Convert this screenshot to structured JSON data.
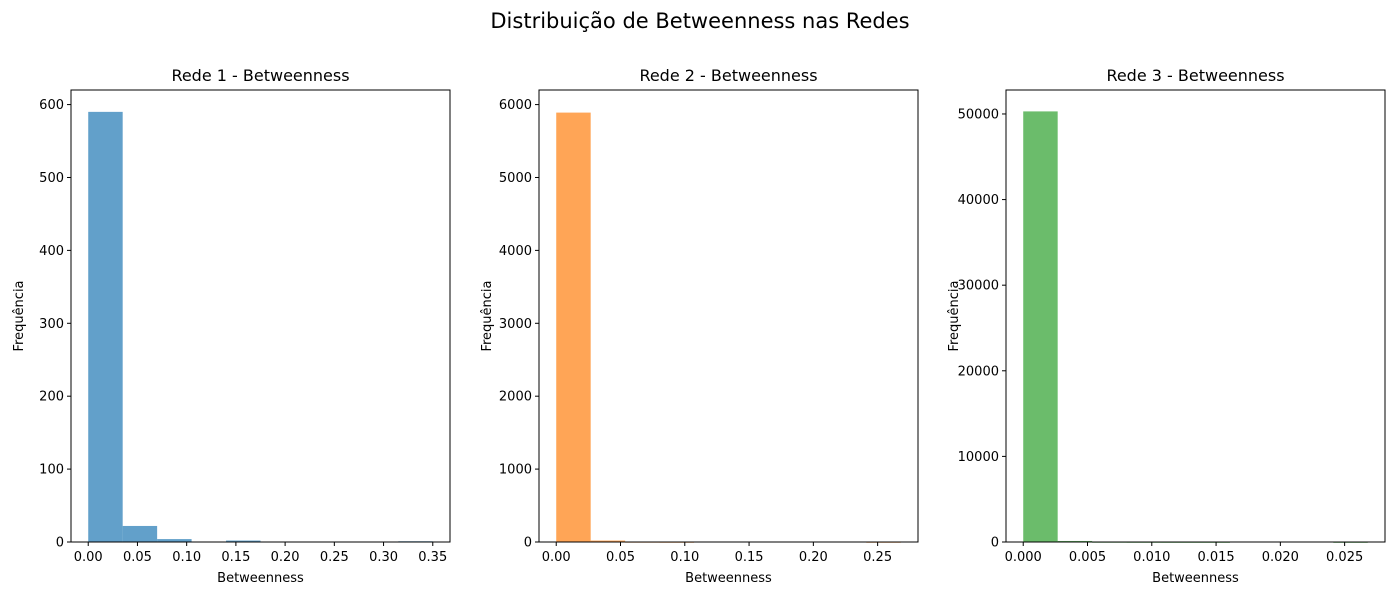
{
  "figure": {
    "title": "Distribuição de Betweenness nas Redes"
  },
  "chart_data": [
    {
      "type": "bar",
      "subtype": "histogram",
      "title": "Rede 1 - Betweenness",
      "xlabel": "Betweenness",
      "ylabel": "Frequência",
      "color": "#1f77b4",
      "opacity": 0.7,
      "bin_edges": [
        0.0,
        0.035,
        0.07,
        0.105,
        0.14,
        0.175,
        0.21,
        0.245,
        0.28,
        0.315,
        0.35
      ],
      "values": [
        590,
        22,
        4,
        0,
        2,
        0,
        0,
        0,
        0,
        1
      ],
      "xlim": [
        -0.0175,
        0.3675
      ],
      "ylim": [
        0,
        620
      ],
      "xticks": [
        0.0,
        0.05,
        0.1,
        0.15,
        0.2,
        0.25,
        0.3,
        0.35
      ],
      "xtick_labels": [
        "0.00",
        "0.05",
        "0.10",
        "0.15",
        "0.20",
        "0.25",
        "0.30",
        "0.35"
      ],
      "yticks": [
        0,
        100,
        200,
        300,
        400,
        500,
        600
      ],
      "ytick_labels": [
        "0",
        "100",
        "200",
        "300",
        "400",
        "500",
        "600"
      ],
      "grid": false,
      "legend": "none"
    },
    {
      "type": "bar",
      "subtype": "histogram",
      "title": "Rede 2 - Betweenness",
      "xlabel": "Betweenness",
      "ylabel": "Frequência",
      "color": "#ff7f0e",
      "opacity": 0.7,
      "bin_edges": [
        0.0,
        0.0268,
        0.0536,
        0.0804,
        0.1072,
        0.134,
        0.1608,
        0.1876,
        0.2144,
        0.2412,
        0.268
      ],
      "values": [
        5890,
        20,
        2,
        1,
        0,
        0,
        0,
        0,
        0,
        1
      ],
      "xlim": [
        -0.0134,
        0.2814
      ],
      "ylim": [
        0,
        6200
      ],
      "xticks": [
        0.0,
        0.05,
        0.1,
        0.15,
        0.2,
        0.25
      ],
      "xtick_labels": [
        "0.00",
        "0.05",
        "0.10",
        "0.15",
        "0.20",
        "0.25"
      ],
      "yticks": [
        0,
        1000,
        2000,
        3000,
        4000,
        5000,
        6000
      ],
      "ytick_labels": [
        "0",
        "1000",
        "2000",
        "3000",
        "4000",
        "5000",
        "6000"
      ],
      "grid": false,
      "legend": "none"
    },
    {
      "type": "bar",
      "subtype": "histogram",
      "title": "Rede 3 - Betweenness",
      "xlabel": "Betweenness",
      "ylabel": "Frequência",
      "color": "#2ca02c",
      "opacity": 0.7,
      "bin_edges": [
        0.0,
        0.00268,
        0.00536,
        0.00804,
        0.01072,
        0.0134,
        0.01608,
        0.01876,
        0.02144,
        0.02412,
        0.0268
      ],
      "values": [
        50300,
        120,
        10,
        3,
        1,
        1,
        0,
        0,
        0,
        1
      ],
      "xlim": [
        -0.00134,
        0.02814
      ],
      "ylim": [
        0,
        52800
      ],
      "xticks": [
        0.0,
        0.005,
        0.01,
        0.015,
        0.02,
        0.025
      ],
      "xtick_labels": [
        "0.000",
        "0.005",
        "0.010",
        "0.015",
        "0.020",
        "0.025"
      ],
      "yticks": [
        0,
        10000,
        20000,
        30000,
        40000,
        50000
      ],
      "ytick_labels": [
        "0",
        "10000",
        "20000",
        "30000",
        "40000",
        "50000"
      ],
      "grid": false,
      "legend": "none"
    }
  ]
}
